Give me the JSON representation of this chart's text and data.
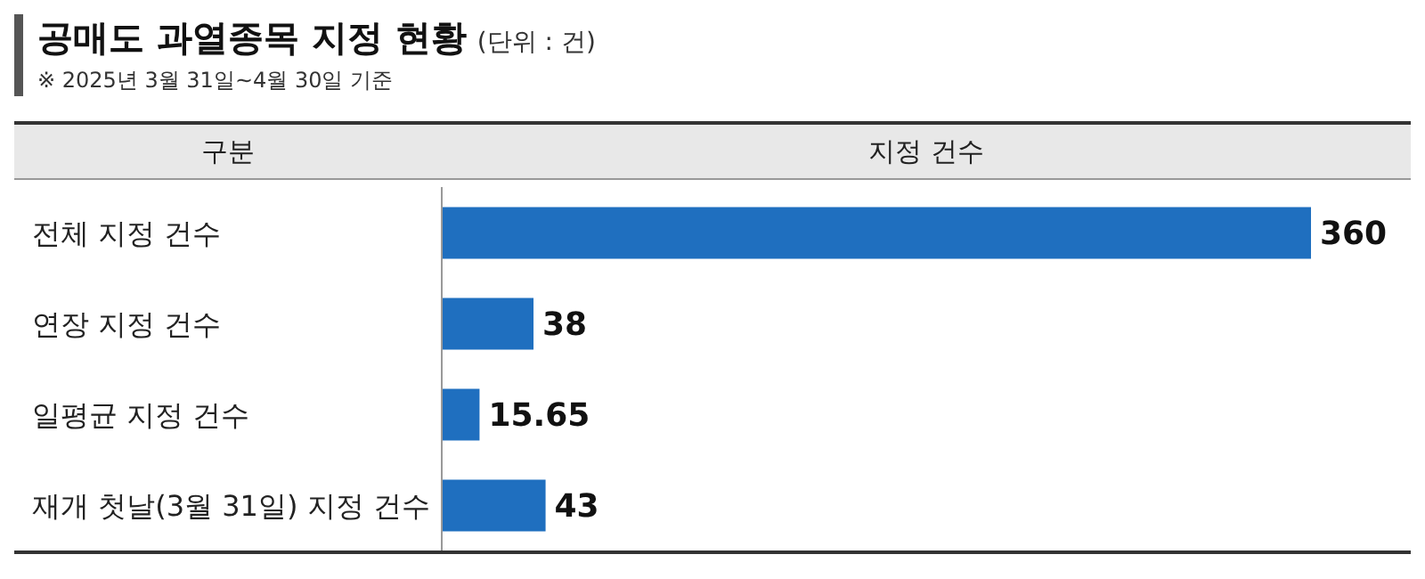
{
  "chart_data": {
    "type": "bar",
    "orientation": "horizontal",
    "title": "공매도 과열종목 지정 현황",
    "subtitle": "(단위 : 건)",
    "annotations": [
      "※ 2025년 3월 31일~4월 30일 기준"
    ],
    "ylabel": "구분",
    "xlabel": "지정 건수",
    "categories": [
      "전체 지정 건수",
      "연장 지정 건수",
      "일평균 지정 건수",
      "재개 첫날(3월 31일) 지정 건수"
    ],
    "values": [
      360,
      38,
      15.65,
      43
    ],
    "color": "#1f6fbf",
    "data_labels": true,
    "tick_labels": "y"
  }
}
